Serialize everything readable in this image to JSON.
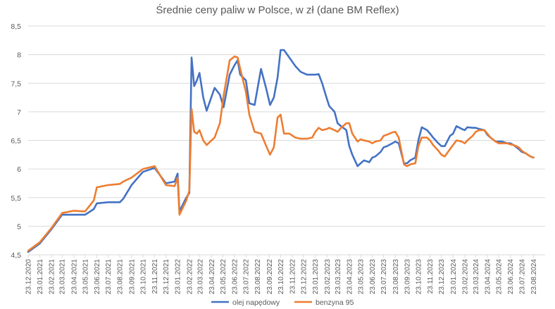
{
  "chart_data": {
    "type": "line",
    "title": "Średnie ceny paliw w Polsce, w zł (dane BM Reflex)",
    "ylim": [
      4.5,
      8.5
    ],
    "yticks": [
      "4,5",
      "5",
      "5,5",
      "6",
      "6,5",
      "7",
      "7,5",
      "8",
      "8,5"
    ],
    "ytick_values": [
      4.5,
      5,
      5.5,
      6,
      6.5,
      7,
      7.5,
      8,
      8.5
    ],
    "x_start": "23.12.2020",
    "x_end": "23.09.2024",
    "x_tick_labels": [
      "23.12.2020",
      "23.01.2021",
      "23.02.2021",
      "23.03.2021",
      "23.04.2021",
      "23.05.2021",
      "23.06.2021",
      "23.07.2021",
      "23.08.2021",
      "23.09.2021",
      "23.10.2021",
      "23.11.2021",
      "23.12.2021",
      "23.01.2022",
      "23.02.2022",
      "23.03.2022",
      "23.04.2022",
      "23.05.2022",
      "23.06.2022",
      "23.07.2022",
      "23.08.2022",
      "23.09.2022",
      "23.10.2022",
      "23.11.2022",
      "23.12.2022",
      "23.01.2023",
      "23.02.2023",
      "23.03.2023",
      "23.04.2023",
      "23.05.2023",
      "23.06.2023",
      "23.07.2023",
      "23.08.2023",
      "23.09.2023",
      "23.10.2023",
      "23.11.2023",
      "23.12.2023",
      "23.01.2024",
      "23.02.2024",
      "23.03.2024",
      "23.04.2024",
      "23.05.2024",
      "23.06.2024",
      "23.07.2024",
      "23.08.2024"
    ],
    "grid": true,
    "legend": "bottom",
    "series": [
      {
        "name": "olej napędowy",
        "color": "#4472c4",
        "points": [
          [
            "23.12.2020",
            4.55
          ],
          [
            "23.01.2021",
            4.7
          ],
          [
            "23.02.2021",
            4.95
          ],
          [
            "23.03.2021",
            5.2
          ],
          [
            "23.04.2021",
            5.2
          ],
          [
            "23.05.2021",
            5.2
          ],
          [
            "15.06.2021",
            5.3
          ],
          [
            "23.06.2021",
            5.4
          ],
          [
            "23.07.2021",
            5.42
          ],
          [
            "23.08.2021",
            5.42
          ],
          [
            "01.09.2021",
            5.48
          ],
          [
            "23.09.2021",
            5.72
          ],
          [
            "23.10.2021",
            5.95
          ],
          [
            "23.11.2021",
            6.02
          ],
          [
            "23.12.2021",
            5.75
          ],
          [
            "15.01.2022",
            5.78
          ],
          [
            "23.01.2022",
            5.92
          ],
          [
            "28.01.2022",
            5.26
          ],
          [
            "15.02.2022",
            5.5
          ],
          [
            "23.02.2022",
            5.58
          ],
          [
            "01.03.2022",
            7.95
          ],
          [
            "08.03.2022",
            7.45
          ],
          [
            "15.03.2022",
            7.55
          ],
          [
            "22.03.2022",
            7.68
          ],
          [
            "01.04.2022",
            7.25
          ],
          [
            "10.04.2022",
            7.02
          ],
          [
            "01.05.2022",
            7.42
          ],
          [
            "15.05.2022",
            7.3
          ],
          [
            "25.05.2022",
            7.08
          ],
          [
            "10.06.2022",
            7.65
          ],
          [
            "23.06.2022",
            7.82
          ],
          [
            "01.07.2022",
            7.9
          ],
          [
            "08.07.2022",
            7.65
          ],
          [
            "23.07.2022",
            7.55
          ],
          [
            "01.08.2022",
            7.15
          ],
          [
            "15.08.2022",
            7.12
          ],
          [
            "01.09.2022",
            7.75
          ],
          [
            "15.09.2022",
            7.4
          ],
          [
            "25.09.2022",
            7.12
          ],
          [
            "05.10.2022",
            7.25
          ],
          [
            "15.10.2022",
            7.6
          ],
          [
            "23.10.2022",
            8.08
          ],
          [
            "01.11.2022",
            8.08
          ],
          [
            "15.11.2022",
            7.95
          ],
          [
            "01.12.2022",
            7.8
          ],
          [
            "15.12.2022",
            7.7
          ],
          [
            "01.01.2023",
            7.65
          ],
          [
            "15.01.2023",
            7.65
          ],
          [
            "23.01.2023",
            7.65
          ],
          [
            "01.02.2023",
            7.66
          ],
          [
            "10.02.2023",
            7.5
          ],
          [
            "23.02.2023",
            7.22
          ],
          [
            "01.03.2023",
            7.1
          ],
          [
            "15.03.2023",
            7.0
          ],
          [
            "23.03.2023",
            6.8
          ],
          [
            "01.04.2023",
            6.75
          ],
          [
            "15.04.2023",
            6.68
          ],
          [
            "23.04.2023",
            6.4
          ],
          [
            "01.05.2023",
            6.25
          ],
          [
            "15.05.2023",
            6.05
          ],
          [
            "23.05.2023",
            6.1
          ],
          [
            "01.06.2023",
            6.15
          ],
          [
            "15.06.2023",
            6.12
          ],
          [
            "23.06.2023",
            6.2
          ],
          [
            "01.07.2023",
            6.22
          ],
          [
            "15.07.2023",
            6.3
          ],
          [
            "23.07.2023",
            6.38
          ],
          [
            "01.08.2023",
            6.4
          ],
          [
            "15.08.2023",
            6.45
          ],
          [
            "23.08.2023",
            6.48
          ],
          [
            "01.09.2023",
            6.45
          ],
          [
            "15.09.2023",
            6.1
          ],
          [
            "23.09.2023",
            6.1
          ],
          [
            "01.10.2023",
            6.15
          ],
          [
            "15.10.2023",
            6.2
          ],
          [
            "23.10.2023",
            6.5
          ],
          [
            "01.11.2023",
            6.73
          ],
          [
            "15.11.2023",
            6.68
          ],
          [
            "23.11.2023",
            6.62
          ],
          [
            "01.12.2023",
            6.55
          ],
          [
            "15.12.2023",
            6.45
          ],
          [
            "23.12.2023",
            6.4
          ],
          [
            "01.01.2024",
            6.4
          ],
          [
            "15.01.2024",
            6.58
          ],
          [
            "23.01.2024",
            6.62
          ],
          [
            "01.02.2024",
            6.75
          ],
          [
            "15.02.2024",
            6.7
          ],
          [
            "23.02.2024",
            6.68
          ],
          [
            "01.03.2024",
            6.73
          ],
          [
            "15.03.2024",
            6.72
          ],
          [
            "23.03.2024",
            6.72
          ],
          [
            "01.04.2024",
            6.7
          ],
          [
            "15.04.2024",
            6.68
          ],
          [
            "23.04.2024",
            6.6
          ],
          [
            "01.05.2024",
            6.55
          ],
          [
            "15.05.2024",
            6.48
          ],
          [
            "23.05.2024",
            6.48
          ],
          [
            "01.06.2024",
            6.48
          ],
          [
            "15.06.2024",
            6.45
          ],
          [
            "23.06.2024",
            6.45
          ],
          [
            "01.07.2024",
            6.42
          ],
          [
            "15.07.2024",
            6.35
          ],
          [
            "23.07.2024",
            6.3
          ],
          [
            "01.08.2024",
            6.28
          ],
          [
            "15.08.2024",
            6.22
          ],
          [
            "23.08.2024",
            6.2
          ]
        ]
      },
      {
        "name": "benzyna 95",
        "color": "#ed7d31",
        "points": [
          [
            "23.12.2020",
            4.57
          ],
          [
            "23.01.2021",
            4.72
          ],
          [
            "23.02.2021",
            4.97
          ],
          [
            "23.03.2021",
            5.23
          ],
          [
            "23.04.2021",
            5.27
          ],
          [
            "23.05.2021",
            5.26
          ],
          [
            "15.06.2021",
            5.45
          ],
          [
            "23.06.2021",
            5.68
          ],
          [
            "23.07.2021",
            5.72
          ],
          [
            "23.08.2021",
            5.74
          ],
          [
            "01.09.2021",
            5.78
          ],
          [
            "23.09.2021",
            5.85
          ],
          [
            "23.10.2021",
            6.0
          ],
          [
            "23.11.2021",
            6.05
          ],
          [
            "23.12.2021",
            5.72
          ],
          [
            "15.01.2022",
            5.7
          ],
          [
            "23.01.2022",
            5.85
          ],
          [
            "28.01.2022",
            5.2
          ],
          [
            "15.02.2022",
            5.45
          ],
          [
            "23.02.2022",
            5.62
          ],
          [
            "01.03.2022",
            7.05
          ],
          [
            "08.03.2022",
            6.65
          ],
          [
            "15.03.2022",
            6.62
          ],
          [
            "22.03.2022",
            6.68
          ],
          [
            "01.04.2022",
            6.5
          ],
          [
            "10.04.2022",
            6.42
          ],
          [
            "01.05.2022",
            6.55
          ],
          [
            "15.05.2022",
            6.8
          ],
          [
            "25.05.2022",
            7.28
          ],
          [
            "10.06.2022",
            7.9
          ],
          [
            "23.06.2022",
            7.97
          ],
          [
            "01.07.2022",
            7.95
          ],
          [
            "08.07.2022",
            7.75
          ],
          [
            "23.07.2022",
            7.35
          ],
          [
            "01.08.2022",
            6.95
          ],
          [
            "15.08.2022",
            6.65
          ],
          [
            "01.09.2022",
            6.62
          ],
          [
            "15.09.2022",
            6.4
          ],
          [
            "25.09.2022",
            6.25
          ],
          [
            "05.10.2022",
            6.38
          ],
          [
            "15.10.2022",
            6.9
          ],
          [
            "23.10.2022",
            6.95
          ],
          [
            "01.11.2022",
            6.62
          ],
          [
            "15.11.2022",
            6.62
          ],
          [
            "01.12.2022",
            6.55
          ],
          [
            "15.12.2022",
            6.53
          ],
          [
            "01.01.2023",
            6.53
          ],
          [
            "15.01.2023",
            6.55
          ],
          [
            "23.01.2023",
            6.65
          ],
          [
            "01.02.2023",
            6.72
          ],
          [
            "10.02.2023",
            6.68
          ],
          [
            "23.02.2023",
            6.7
          ],
          [
            "01.03.2023",
            6.72
          ],
          [
            "15.03.2023",
            6.68
          ],
          [
            "23.03.2023",
            6.65
          ],
          [
            "01.04.2023",
            6.72
          ],
          [
            "15.04.2023",
            6.8
          ],
          [
            "23.04.2023",
            6.8
          ],
          [
            "01.05.2023",
            6.62
          ],
          [
            "15.05.2023",
            6.48
          ],
          [
            "23.05.2023",
            6.52
          ],
          [
            "01.06.2023",
            6.5
          ],
          [
            "15.06.2023",
            6.48
          ],
          [
            "23.06.2023",
            6.45
          ],
          [
            "01.07.2023",
            6.48
          ],
          [
            "15.07.2023",
            6.5
          ],
          [
            "23.07.2023",
            6.58
          ],
          [
            "01.08.2023",
            6.6
          ],
          [
            "15.08.2023",
            6.64
          ],
          [
            "23.08.2023",
            6.65
          ],
          [
            "01.09.2023",
            6.55
          ],
          [
            "15.09.2023",
            6.08
          ],
          [
            "23.09.2023",
            6.05
          ],
          [
            "01.10.2023",
            6.08
          ],
          [
            "15.10.2023",
            6.1
          ],
          [
            "23.10.2023",
            6.4
          ],
          [
            "01.11.2023",
            6.55
          ],
          [
            "15.11.2023",
            6.55
          ],
          [
            "23.11.2023",
            6.5
          ],
          [
            "01.12.2023",
            6.42
          ],
          [
            "15.12.2023",
            6.32
          ],
          [
            "23.12.2023",
            6.25
          ],
          [
            "01.01.2024",
            6.22
          ],
          [
            "15.01.2024",
            6.35
          ],
          [
            "23.01.2024",
            6.42
          ],
          [
            "01.02.2024",
            6.5
          ],
          [
            "15.02.2024",
            6.48
          ],
          [
            "23.02.2024",
            6.45
          ],
          [
            "01.03.2024",
            6.5
          ],
          [
            "15.03.2024",
            6.58
          ],
          [
            "23.03.2024",
            6.65
          ],
          [
            "01.04.2024",
            6.68
          ],
          [
            "15.04.2024",
            6.68
          ],
          [
            "23.04.2024",
            6.62
          ],
          [
            "01.05.2024",
            6.55
          ],
          [
            "15.05.2024",
            6.48
          ],
          [
            "23.05.2024",
            6.45
          ],
          [
            "01.06.2024",
            6.45
          ],
          [
            "15.06.2024",
            6.45
          ],
          [
            "23.06.2024",
            6.43
          ],
          [
            "01.07.2024",
            6.42
          ],
          [
            "15.07.2024",
            6.38
          ],
          [
            "23.07.2024",
            6.32
          ],
          [
            "01.08.2024",
            6.28
          ],
          [
            "15.08.2024",
            6.22
          ],
          [
            "23.08.2024",
            6.2
          ]
        ]
      }
    ]
  }
}
